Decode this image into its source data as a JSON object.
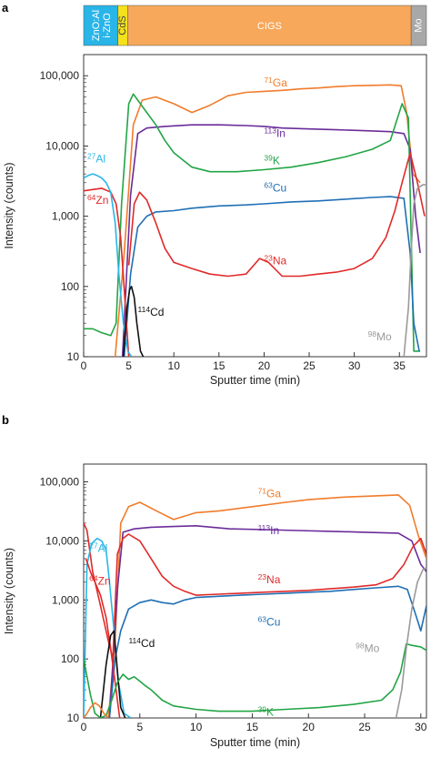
{
  "colors": {
    "Ga": "#f07c2b",
    "In": "#6a2c9a",
    "K": "#22a545",
    "Cu": "#1f6fb5",
    "Na": "#e02a2a",
    "Zn": "#e02a2a",
    "Al": "#29b5e8",
    "Cd": "#111111",
    "Mo": "#9a9a9a",
    "layer_zno": "#29b5e8",
    "layer_cds": "#f5e11b",
    "layer_cigs": "#f7a85a",
    "layer_mo": "#a8a8a8"
  },
  "layers": [
    {
      "label": "ZnO:Al",
      "label2": "i-ZnO",
      "color_key": "layer_zno",
      "x0": 0,
      "x1": 3.8
    },
    {
      "label": "CdS",
      "color_key": "layer_cds",
      "x0": 3.8,
      "x1": 4.9
    },
    {
      "label": "CIGS",
      "color_key": "layer_cigs",
      "x0": 4.9,
      "x1": 36.3
    },
    {
      "label": "Mo",
      "color_key": "layer_mo",
      "x0": 36.3,
      "x1": 38
    }
  ],
  "chart_data": [
    {
      "panel_label": "a",
      "type": "line",
      "xlabel": "Sputter time (min)",
      "ylabel": "Intensity (counts)",
      "xlim": [
        0,
        38
      ],
      "ylim": [
        10,
        200000
      ],
      "yscale": "log",
      "xticks": [
        "0",
        "5",
        "10",
        "15",
        "20",
        "25",
        "30",
        "35"
      ],
      "xtick_values": [
        0,
        5,
        10,
        15,
        20,
        25,
        30,
        35
      ],
      "yticks": [
        "10",
        "100",
        "1,000",
        "10,000",
        "100,000"
      ],
      "ytick_values": [
        10,
        100,
        1000,
        10000,
        100000
      ],
      "series": [
        {
          "name": "71Ga",
          "sup": "71",
          "el": "Ga",
          "color_key": "Ga",
          "label_pos": [
            20,
            70000
          ],
          "x": [
            3.5,
            4.5,
            5.5,
            6.5,
            8,
            10,
            12,
            14,
            16,
            18,
            20,
            22,
            24,
            26,
            28,
            30,
            32,
            34,
            35.2,
            35.8,
            36.5,
            37.3
          ],
          "y": [
            10,
            300,
            20000,
            45000,
            50000,
            40000,
            30000,
            38000,
            52000,
            58000,
            60000,
            62000,
            65000,
            67000,
            70000,
            72000,
            73000,
            74000,
            72000,
            30000,
            4000,
            3000
          ]
        },
        {
          "name": "113In",
          "sup": "113",
          "el": "In",
          "color_key": "In",
          "label_pos": [
            20,
            13500
          ],
          "x": [
            4.3,
            5.2,
            6,
            7,
            9,
            12,
            15,
            18,
            20,
            22,
            25,
            28,
            31,
            34,
            35.5,
            36.2,
            36.8,
            37.3
          ],
          "y": [
            10,
            2000,
            15000,
            18000,
            19000,
            20000,
            20000,
            19500,
            19000,
            18000,
            17500,
            17000,
            16500,
            16000,
            15000,
            9000,
            1000,
            300
          ]
        },
        {
          "name": "39K",
          "sup": "39",
          "el": "K",
          "color_key": "K",
          "label_pos": [
            20,
            5500
          ],
          "x": [
            0,
            1,
            2,
            3,
            3.6,
            4.2,
            5,
            5.5,
            6,
            7,
            8,
            9,
            10,
            12,
            14,
            17,
            20,
            23,
            26,
            29,
            32,
            34,
            35.3,
            36,
            36.6,
            37.3
          ],
          "y": [
            25,
            25,
            22,
            20,
            30,
            1500,
            40000,
            55000,
            45000,
            30000,
            20000,
            12000,
            8000,
            5000,
            4300,
            4300,
            4600,
            5000,
            5800,
            7000,
            9000,
            12000,
            40000,
            25000,
            12,
            12
          ]
        },
        {
          "name": "63Cu",
          "sup": "63",
          "el": "Cu",
          "color_key": "Cu",
          "label_pos": [
            20,
            2250
          ],
          "x": [
            4.5,
            5.2,
            6,
            7,
            8,
            10,
            12,
            15,
            18,
            20,
            23,
            26,
            29,
            32,
            34,
            35.5,
            36.2,
            36.6,
            37.2
          ],
          "y": [
            10,
            150,
            700,
            1000,
            1150,
            1200,
            1300,
            1400,
            1450,
            1500,
            1600,
            1650,
            1750,
            1850,
            1900,
            1800,
            300,
            30,
            12
          ]
        },
        {
          "name": "23Na",
          "sup": "23",
          "el": "Na",
          "color_key": "Na",
          "label_pos": [
            20,
            205
          ],
          "x": [
            5,
            5.6,
            6.2,
            7,
            8,
            9,
            10,
            12,
            14,
            16,
            18,
            19.5,
            20.5,
            22,
            24,
            26,
            28,
            30,
            32,
            33.5,
            34.5,
            35.3,
            36.2,
            37,
            37.8
          ],
          "y": [
            200,
            1500,
            2200,
            1700,
            800,
            350,
            220,
            180,
            150,
            140,
            150,
            250,
            220,
            140,
            140,
            150,
            160,
            180,
            250,
            500,
            1200,
            3000,
            8000,
            3000,
            1000
          ]
        },
        {
          "name": "64Zn",
          "sup": "64",
          "el": "Zn",
          "color_key": "Zn",
          "label_pos": [
            0.4,
            1500
          ],
          "x": [
            0,
            1,
            2,
            3,
            3.6,
            4.1,
            4.6,
            5
          ],
          "y": [
            2300,
            2400,
            2500,
            2200,
            1500,
            500,
            60,
            10
          ]
        },
        {
          "name": "27Al",
          "sup": "27",
          "el": "Al",
          "color_key": "Al",
          "label_pos": [
            0.4,
            5800
          ],
          "x": [
            0,
            0.5,
            1,
            1.5,
            2,
            2.5,
            3,
            3.5,
            3.9,
            4.4,
            4.9,
            5.3
          ],
          "y": [
            3500,
            3800,
            4000,
            3800,
            3500,
            3000,
            2200,
            800,
            150,
            30,
            12,
            10
          ]
        },
        {
          "name": "114Cd",
          "sup": "114",
          "el": "Cd",
          "color_key": "Cd",
          "label_pos": [
            6,
            38
          ],
          "x": [
            4.4,
            4.8,
            5.1,
            5.3,
            5.6,
            5.9,
            6.3,
            6.6
          ],
          "y": [
            10,
            50,
            90,
            100,
            70,
            30,
            12,
            10
          ]
        },
        {
          "name": "98Mo",
          "sup": "98",
          "el": "Mo",
          "color_key": "Mo",
          "label_pos": [
            31.5,
            17
          ],
          "x": [
            35.5,
            36,
            36.3,
            36.6,
            37,
            37.6,
            38
          ],
          "y": [
            10,
            50,
            300,
            1500,
            2500,
            2800,
            2800
          ]
        }
      ]
    },
    {
      "panel_label": "b",
      "type": "line",
      "xlabel": "Sputter time (min)",
      "ylabel": "Intensity (counts)",
      "xlim": [
        0,
        30.5
      ],
      "ylim": [
        10,
        200000
      ],
      "yscale": "log",
      "xticks": [
        "0",
        "5",
        "10",
        "15",
        "20",
        "25",
        "30"
      ],
      "xtick_values": [
        0,
        5,
        10,
        15,
        20,
        25,
        30
      ],
      "yticks": [
        "10",
        "100",
        "1,000",
        "10,000",
        "100,000"
      ],
      "ytick_values": [
        10,
        100,
        1000,
        10000,
        100000
      ],
      "series": [
        {
          "name": "71Ga",
          "sup": "71",
          "el": "Ga",
          "color_key": "Ga",
          "label_pos": [
            15.5,
            55000
          ],
          "x": [
            2.2,
            2.8,
            3.3,
            4,
            5,
            6.5,
            8,
            10,
            12,
            15,
            18,
            20,
            23,
            26,
            28,
            29,
            29.8,
            30.5
          ],
          "y": [
            10,
            200,
            20000,
            38000,
            45000,
            32000,
            23000,
            30000,
            32000,
            38000,
            45000,
            50000,
            55000,
            58000,
            60000,
            40000,
            12000,
            5000
          ]
        },
        {
          "name": "113In",
          "sup": "113",
          "el": "In",
          "color_key": "In",
          "label_pos": [
            15.5,
            13000
          ],
          "x": [
            2.3,
            3,
            3.5,
            4.5,
            6,
            8,
            10,
            13,
            16,
            19,
            22,
            25,
            28,
            29.2,
            30,
            30.5
          ],
          "y": [
            10,
            1500,
            14000,
            16000,
            17000,
            17500,
            18000,
            16000,
            15500,
            15000,
            14500,
            14000,
            13500,
            10000,
            4000,
            3000
          ]
        },
        {
          "name": "23Na",
          "sup": "23",
          "el": "Na",
          "color_key": "Na",
          "label_pos": [
            15.5,
            1900
          ],
          "x": [
            0,
            0.3,
            0.8,
            1.5,
            2.2,
            2.6,
            3,
            3.5,
            4,
            5,
            6,
            7,
            8,
            9,
            10,
            12,
            14,
            16,
            18,
            20,
            22,
            24,
            26,
            27.5,
            28.5,
            29.3,
            30,
            30.5
          ],
          "y": [
            20000,
            15000,
            3000,
            800,
            200,
            100,
            6000,
            11000,
            13000,
            10000,
            5000,
            2500,
            1700,
            1400,
            1200,
            1250,
            1300,
            1350,
            1400,
            1450,
            1550,
            1650,
            1800,
            2300,
            4000,
            8000,
            11000,
            6000
          ]
        },
        {
          "name": "63Cu",
          "sup": "63",
          "el": "Cu",
          "color_key": "Cu",
          "label_pos": [
            15.5,
            370
          ],
          "x": [
            2.3,
            2.8,
            3.3,
            4,
            5,
            6,
            7,
            8,
            9,
            10,
            12,
            14,
            16,
            18,
            20,
            22,
            24,
            26,
            28,
            28.8,
            29.5,
            30,
            30.5
          ],
          "y": [
            10,
            100,
            300,
            700,
            900,
            1000,
            900,
            850,
            1000,
            1100,
            1150,
            1200,
            1250,
            1300,
            1350,
            1400,
            1500,
            1600,
            1700,
            1500,
            600,
            300,
            800
          ]
        },
        {
          "name": "27Al",
          "sup": "27",
          "el": "Al",
          "color_key": "Al",
          "label_pos": [
            0.5,
            6500
          ],
          "x": [
            0,
            0.3,
            0.7,
            1.2,
            1.6,
            2,
            2.3,
            2.7,
            3.1,
            3.6,
            4.2
          ],
          "y": [
            10,
            4000,
            9000,
            11000,
            10000,
            7000,
            2000,
            300,
            40,
            12,
            10
          ]
        },
        {
          "name": "64Zn",
          "sup": "64",
          "el": "Zn",
          "color_key": "Zn",
          "label_pos": [
            0.5,
            1800
          ],
          "x": [
            0.2,
            0.6,
            1,
            1.5,
            2,
            2.4,
            2.8,
            3.2
          ],
          "y": [
            5000,
            3000,
            2000,
            1200,
            500,
            150,
            40,
            10
          ]
        },
        {
          "name": "114Cd",
          "sup": "114",
          "el": "Cd",
          "color_key": "Cd",
          "label_pos": [
            4,
            160
          ],
          "x": [
            1.5,
            2,
            2.4,
            2.7,
            3,
            3.3,
            3.7
          ],
          "y": [
            10,
            80,
            250,
            300,
            60,
            15,
            10
          ]
        },
        {
          "name": "39K",
          "sup": "39",
          "el": "K",
          "color_key": "K",
          "label_pos": [
            15.5,
            11
          ],
          "x": [
            0,
            0.3,
            0.6,
            1,
            1.5,
            2,
            2.5,
            3,
            3.5,
            4,
            4.5,
            5,
            5.5,
            6,
            7,
            8,
            10,
            12,
            15,
            18,
            21,
            24,
            26.5,
            27.5,
            28.2,
            28.7,
            29.2,
            30,
            30.5
          ],
          "y": [
            100,
            50,
            25,
            12,
            10,
            11,
            20,
            40,
            55,
            45,
            50,
            42,
            35,
            30,
            20,
            16,
            14,
            13,
            13,
            14,
            15,
            17,
            20,
            30,
            60,
            180,
            170,
            160,
            140
          ]
        },
        {
          "name": "98Mo",
          "sup": "98",
          "el": "Mo",
          "color_key": "Mo",
          "label_pos": [
            24.2,
            130
          ],
          "x": [
            27.8,
            28.3,
            28.7,
            29.2,
            29.7,
            30.2,
            30.5
          ],
          "y": [
            10,
            30,
            150,
            700,
            2000,
            3300,
            3500
          ]
        },
        {
          "name": "",
          "sup": "",
          "el": "",
          "color_key": "Ga",
          "label_pos": null,
          "x": [
            0,
            0.3,
            0.6,
            1,
            1.4,
            1.8,
            2.2
          ],
          "y": [
            10,
            12,
            15,
            18,
            16,
            12,
            10
          ]
        }
      ]
    }
  ]
}
